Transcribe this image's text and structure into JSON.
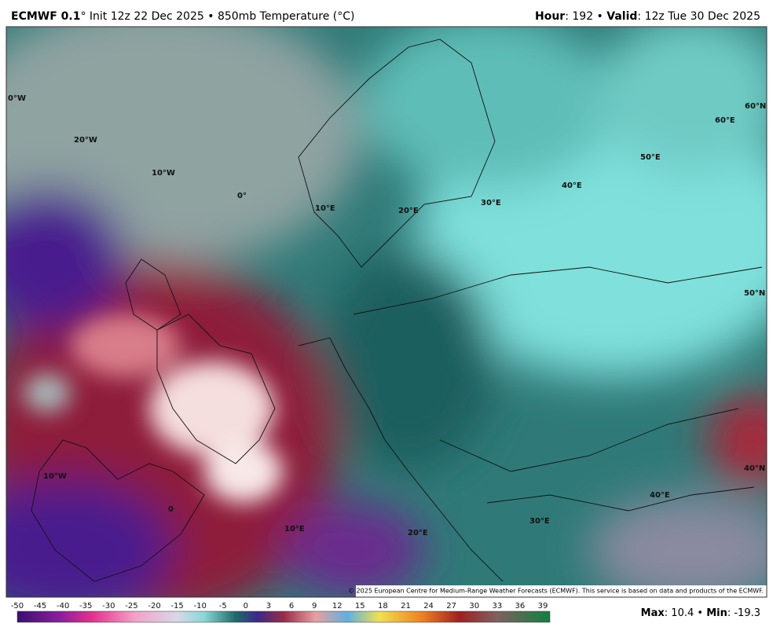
{
  "header": {
    "model": "ECMWF 0.1",
    "init": "° Init 12z 22 Dec 2025",
    "product": "• 850mb Temperature (°C)",
    "hour_label": "Hour",
    "hour": ": 192 •",
    "valid_label": "Valid",
    "valid": ": 12z Tue 30 Dec 2025"
  },
  "map": {
    "graticule_labels": [
      "0°W",
      "20°W",
      "10°W",
      "0°",
      "10°E",
      "20°E",
      "30°E",
      "40°E",
      "50°E",
      "60°E",
      "60°N",
      "50°N",
      "40°N",
      "40°E",
      "30°E",
      "20°E",
      "10°E",
      "0",
      "10°W"
    ],
    "credit": "© 2025 European Centre for Medium-Range Weather Forecasts (ECMWF). This service is based on data and products of the ECMWF."
  },
  "colorbar": {
    "ticks": [
      -50,
      -45,
      -40,
      -35,
      -30,
      -25,
      -20,
      -15,
      -10,
      -5,
      0,
      3,
      6,
      9,
      12,
      15,
      18,
      21,
      24,
      27,
      30,
      33,
      36,
      39
    ]
  },
  "stats": {
    "max_label": "Max",
    "max": ": 10.4 •",
    "min_label": "Min",
    "min": ": -19.3"
  }
}
